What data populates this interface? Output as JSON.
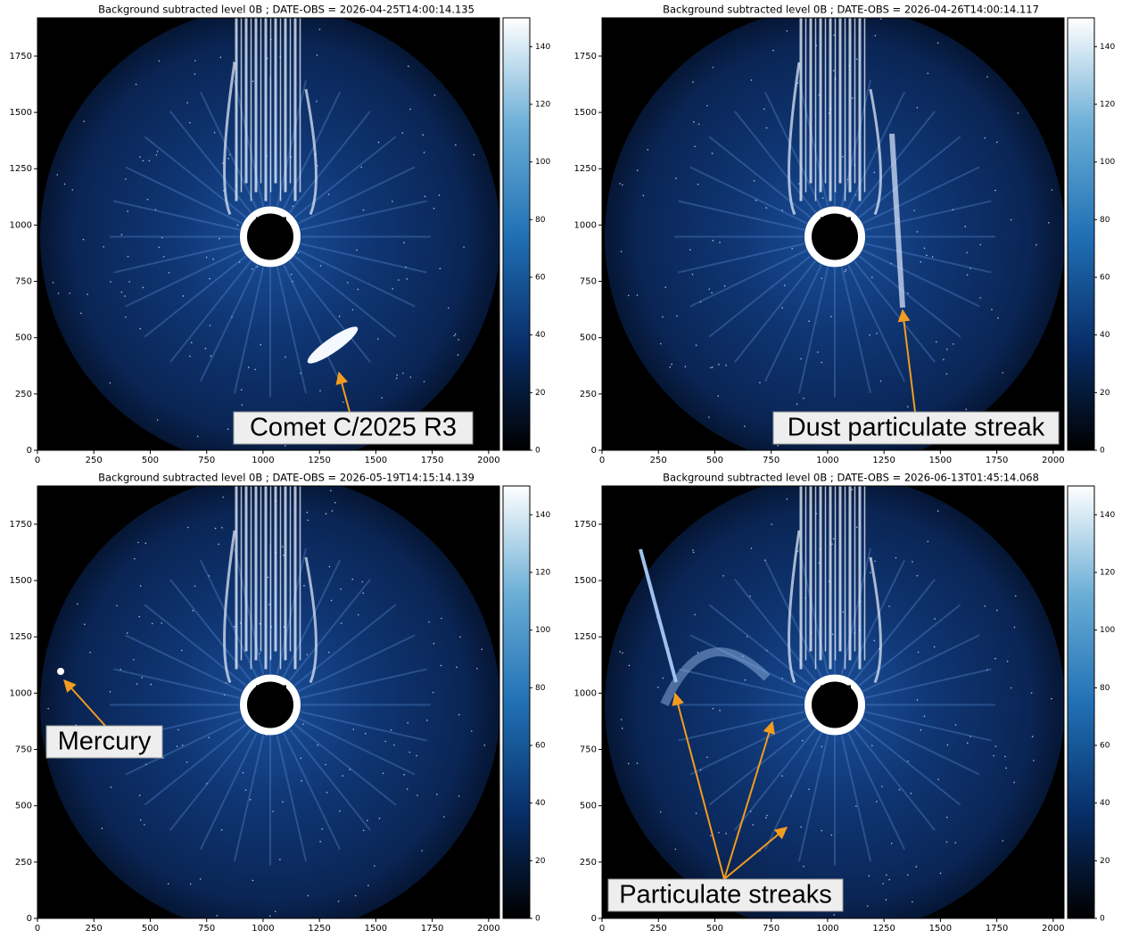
{
  "chart_data": [
    {
      "type": "image",
      "title": "Background subtracted level 0B ; DATE-OBS = 2026-04-25T14:00:14.135",
      "xlim": [
        0,
        2048
      ],
      "ylim": [
        0,
        1920
      ],
      "xticks": [
        0,
        250,
        500,
        750,
        1000,
        1250,
        1500,
        1750,
        2000
      ],
      "yticks": [
        0,
        250,
        500,
        750,
        1000,
        1250,
        1500,
        1750
      ],
      "clim": [
        0,
        150
      ],
      "cticks": [
        0,
        20,
        40,
        60,
        80,
        100,
        120,
        140
      ],
      "colormap": [
        "#000000",
        "#08306b",
        "#2171b5",
        "#6baed6",
        "#ffffff"
      ],
      "annotation": "Comet C/2025 R3"
    },
    {
      "type": "image",
      "title": "Background subtracted level 0B ; DATE-OBS = 2026-04-26T14:00:14.117",
      "xlim": [
        0,
        2048
      ],
      "ylim": [
        0,
        1920
      ],
      "xticks": [
        0,
        250,
        500,
        750,
        1000,
        1250,
        1500,
        1750,
        2000
      ],
      "yticks": [
        0,
        250,
        500,
        750,
        1000,
        1250,
        1500,
        1750
      ],
      "clim": [
        0,
        150
      ],
      "cticks": [
        0,
        20,
        40,
        60,
        80,
        100,
        120,
        140
      ],
      "colormap": [
        "#000000",
        "#08306b",
        "#2171b5",
        "#6baed6",
        "#ffffff"
      ],
      "annotation": "Dust particulate streak"
    },
    {
      "type": "image",
      "title": "Background subtracted level 0B ; DATE-OBS = 2026-05-19T14:15:14.139",
      "xlim": [
        0,
        2048
      ],
      "ylim": [
        0,
        1920
      ],
      "xticks": [
        0,
        250,
        500,
        750,
        1000,
        1250,
        1500,
        1750,
        2000
      ],
      "yticks": [
        0,
        250,
        500,
        750,
        1000,
        1250,
        1500,
        1750
      ],
      "clim": [
        0,
        150
      ],
      "cticks": [
        0,
        20,
        40,
        60,
        80,
        100,
        120,
        140
      ],
      "colormap": [
        "#000000",
        "#08306b",
        "#2171b5",
        "#6baed6",
        "#ffffff"
      ],
      "annotation": "Mercury"
    },
    {
      "type": "image",
      "title": "Background subtracted level 0B ; DATE-OBS = 2026-06-13T01:45:14.068",
      "xlim": [
        0,
        2048
      ],
      "ylim": [
        0,
        1920
      ],
      "xticks": [
        0,
        250,
        500,
        750,
        1000,
        1250,
        1500,
        1750,
        2000
      ],
      "yticks": [
        0,
        250,
        500,
        750,
        1000,
        1250,
        1500,
        1750
      ],
      "clim": [
        0,
        150
      ],
      "cticks": [
        0,
        20,
        40,
        60,
        80,
        100,
        120,
        140
      ],
      "colormap": [
        "#000000",
        "#08306b",
        "#2171b5",
        "#6baed6",
        "#ffffff"
      ],
      "annotation": "Particulate streaks"
    }
  ]
}
